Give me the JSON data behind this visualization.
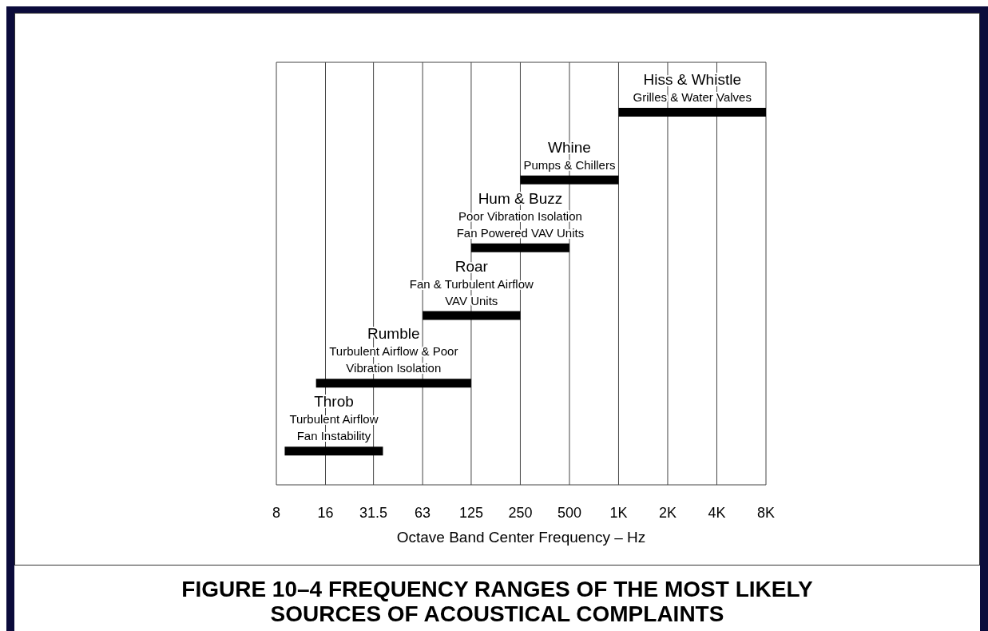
{
  "chart_data": {
    "type": "bar",
    "orientation": "horizontal",
    "title": "FIGURE 10–4  FREQUENCY RANGES OF THE MOST LIKELY SOURCES OF ACOUSTICAL COMPLAINTS",
    "xlabel": "Octave Band Center Frequency – Hz",
    "categories": [
      null,
      null,
      null,
      null,
      null,
      null
    ],
    "base": [
      1000,
      250,
      125,
      63,
      14,
      9
    ],
    "values": [
      7000,
      750,
      375,
      187,
      111,
      27
    ],
    "color": "#000000",
    "xlim": [
      8,
      8000
    ],
    "xticks": [
      8,
      16,
      31.5,
      63,
      125,
      250,
      500,
      {
        "value": 1000,
        "label": "1K"
      },
      {
        "value": 2000,
        "label": "2K"
      },
      {
        "value": 4000,
        "label": "4K"
      },
      {
        "value": 8000,
        "label": "8K"
      }
    ],
    "log": "x",
    "grid": "x",
    "tick_labels": "x",
    "annotations": [
      "Hiss & Whistle\nGrilles & Water Valves",
      "Whine\nPumps & Chillers",
      "Hum & Buzz\nPoor Vibration Isolation\nFan Powered VAV Units",
      "Roar\nFan & Turbulent Airflow\nVAV Units",
      "Rumble\nTurbulent Airflow & Poor\nVibration Isolation",
      "Throb\nTurbulent Airflow\nFan Instability"
    ]
  }
}
